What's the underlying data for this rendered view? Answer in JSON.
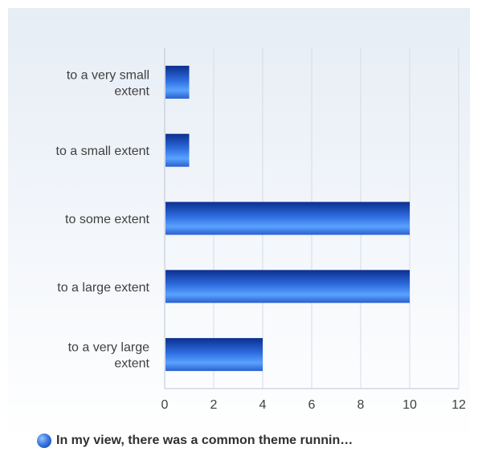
{
  "chart_data": {
    "type": "bar",
    "orientation": "horizontal",
    "categories": [
      "to a very small extent",
      "to a small extent",
      "to some extent",
      "to a large extent",
      "to a very large extent"
    ],
    "category_lines": [
      [
        "to a very small",
        "extent"
      ],
      [
        "to a small extent"
      ],
      [
        "to some extent"
      ],
      [
        "to a large extent"
      ],
      [
        "to a very large",
        "extent"
      ]
    ],
    "series": [
      {
        "name": "In my view, there was a common theme runnin…",
        "values": [
          1,
          1,
          10,
          10,
          4
        ]
      }
    ],
    "xlim": [
      0,
      12
    ],
    "xticks": [
      0,
      2,
      4,
      6,
      8,
      10,
      12
    ],
    "grid": true,
    "legend_position": "bottom",
    "colors": {
      "bar_dark": "#0b2f8f",
      "bar_light": "#5aa2ff",
      "grid": "#d4dce8",
      "axis": "#b8c4d4"
    }
  }
}
